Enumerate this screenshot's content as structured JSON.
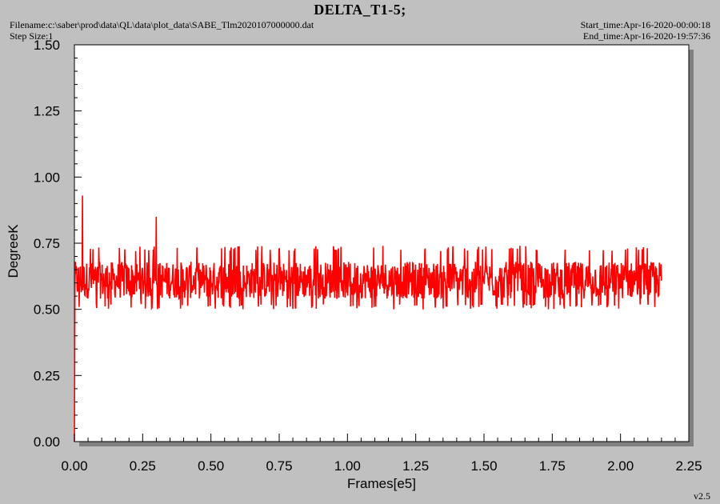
{
  "header": {
    "title": "DELTA_T1-5;",
    "filename": "Filename:c:\\saber\\prod\\data\\QL\\data\\plot_data\\SABE_Tlm2020107000000.dat",
    "step_size": "Step Size:1",
    "start_time": "Start_time:Apr-16-2020-00:00:18",
    "end_time": "End_time:Apr-16-2020-19:57:36"
  },
  "footer": {
    "version": "v2.5"
  },
  "colors": {
    "series": "#ff0000",
    "background": "#c0c0c0",
    "plot_background": "#ffffff",
    "shadow": "#808080"
  },
  "chart_data": {
    "type": "line",
    "title": "DELTA_T1-5;",
    "xlabel": "Frames[e5]",
    "ylabel": "DegreeK",
    "xlim": [
      0,
      2.25
    ],
    "ylim": [
      0,
      1.5
    ],
    "x_ticks": [
      "0.00",
      "0.25",
      "0.50",
      "0.75",
      "1.00",
      "1.25",
      "1.50",
      "1.75",
      "2.00",
      "2.25"
    ],
    "y_ticks": [
      "0.00",
      "0.25",
      "0.50",
      "0.75",
      "1.00",
      "1.25",
      "1.50"
    ],
    "grid": false,
    "series": [
      {
        "color": "#ff0000",
        "x_range": [
          0,
          2.15
        ],
        "baseline_min": 0.5,
        "baseline_max": 0.74,
        "mean": 0.61,
        "start_value": 0.0,
        "spikes": [
          {
            "x": 0.03,
            "y": 0.93
          },
          {
            "x": 0.3,
            "y": 0.85
          }
        ]
      }
    ]
  }
}
